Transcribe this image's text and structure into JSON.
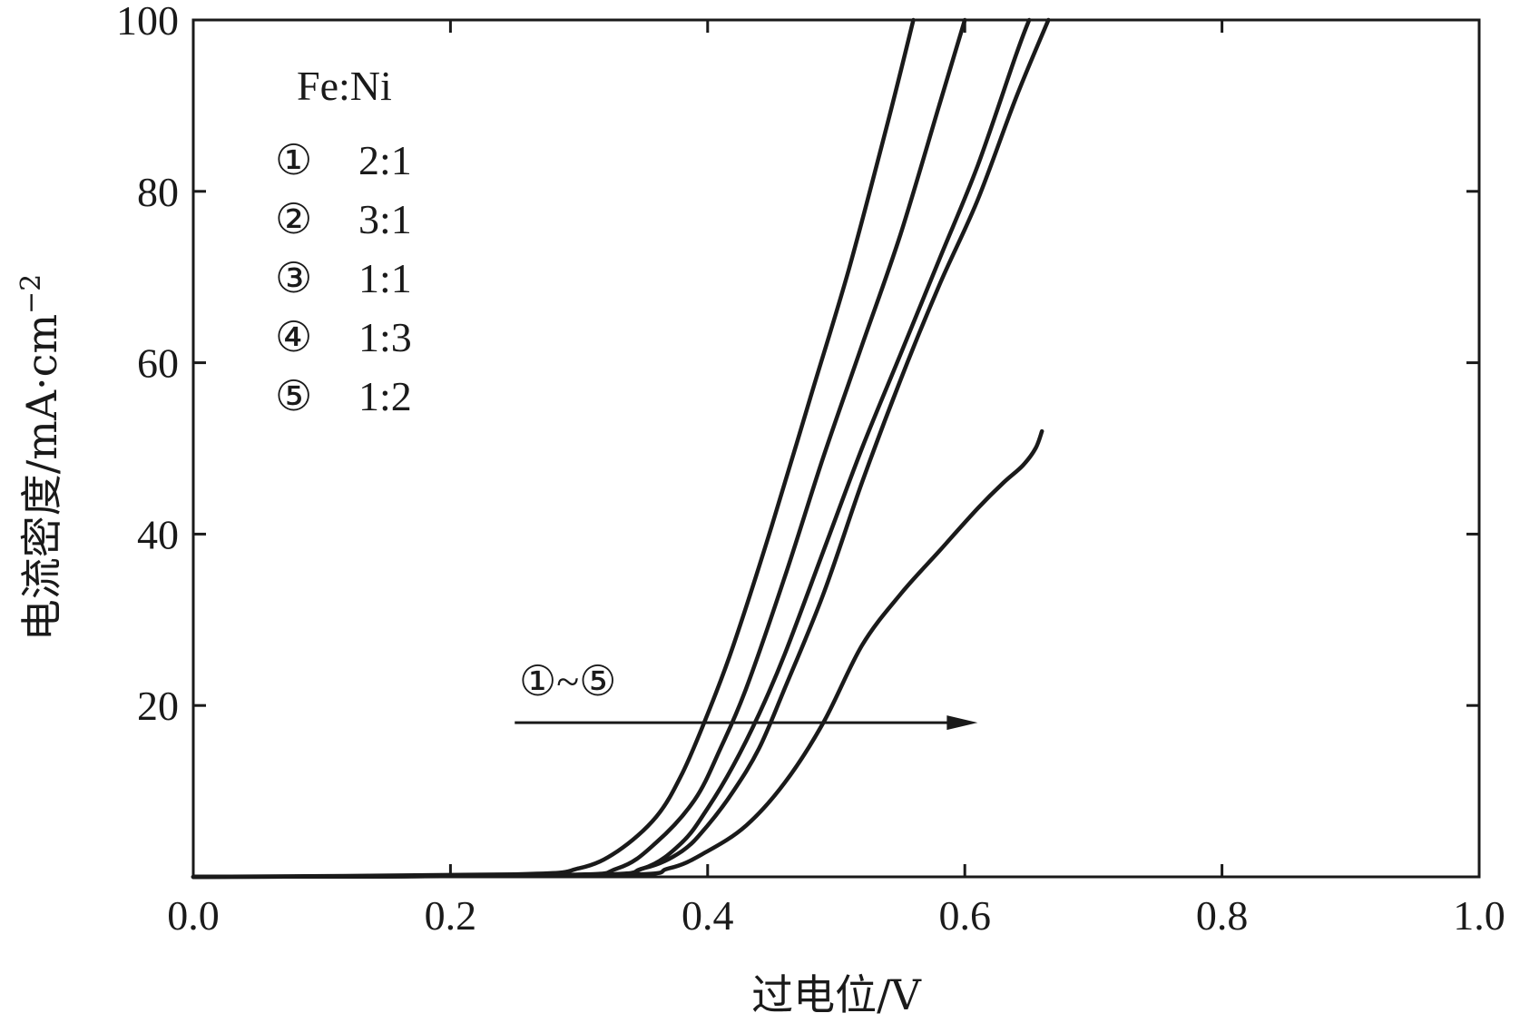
{
  "chart_data": {
    "type": "line",
    "xlabel": "过电位/V",
    "ylabel": "电流密度/mA·cm",
    "ylabel_exponent": "−2",
    "xlim": [
      0.0,
      1.0
    ],
    "ylim": [
      0,
      100
    ],
    "x_ticks": [
      0.0,
      0.2,
      0.4,
      0.6,
      0.8,
      1.0
    ],
    "x_tick_labels": [
      "0.0",
      "0.2",
      "0.4",
      "0.6",
      "0.8",
      "1.0"
    ],
    "y_ticks": [
      20,
      40,
      60,
      80,
      100
    ],
    "y_tick_labels": [
      "20",
      "40",
      "60",
      "80",
      "100"
    ],
    "grid": false,
    "legend_position": "top-left",
    "legend": {
      "title": "Fe:Ni",
      "entries": [
        {
          "marker": "①",
          "label": "2:1"
        },
        {
          "marker": "②",
          "label": "3:1"
        },
        {
          "marker": "③",
          "label": "1:1"
        },
        {
          "marker": "④",
          "label": "1:3"
        },
        {
          "marker": "⑤",
          "label": "1:2"
        }
      ]
    },
    "annotation": {
      "text": "①~⑤",
      "arrow_x": [
        0.25,
        0.61
      ],
      "arrow_y": 18
    },
    "series": [
      {
        "marker": "①",
        "x": [
          0.0,
          0.25,
          0.3,
          0.33,
          0.36,
          0.38,
          0.4,
          0.42,
          0.45,
          0.48,
          0.51,
          0.54,
          0.56
        ],
        "y": [
          0,
          0.3,
          1,
          3,
          7,
          12,
          19,
          27,
          41,
          56,
          71,
          88,
          100
        ]
      },
      {
        "marker": "②",
        "x": [
          0.0,
          0.28,
          0.33,
          0.36,
          0.39,
          0.41,
          0.43,
          0.46,
          0.49,
          0.52,
          0.55,
          0.58,
          0.6
        ],
        "y": [
          0,
          0.2,
          1,
          4,
          9,
          15,
          22,
          35,
          49,
          62,
          75,
          90,
          100
        ]
      },
      {
        "marker": "③",
        "x": [
          0.0,
          0.3,
          0.35,
          0.38,
          0.4,
          0.42,
          0.44,
          0.46,
          0.49,
          0.52,
          0.55,
          0.58,
          0.61,
          0.64,
          0.65
        ],
        "y": [
          0,
          0.2,
          1,
          4,
          8,
          13,
          19,
          26,
          38,
          50,
          61,
          72,
          83,
          96,
          100
        ]
      },
      {
        "marker": "④",
        "x": [
          0.0,
          0.3,
          0.35,
          0.38,
          0.4,
          0.42,
          0.44,
          0.46,
          0.49,
          0.52,
          0.55,
          0.58,
          0.61,
          0.64,
          0.665
        ],
        "y": [
          0,
          0.2,
          1,
          3,
          6,
          10,
          15,
          22,
          33,
          46,
          58,
          69,
          79,
          91,
          100
        ]
      },
      {
        "marker": "⑤",
        "x": [
          0.0,
          0.32,
          0.37,
          0.4,
          0.43,
          0.46,
          0.49,
          0.52,
          0.55,
          0.58,
          0.61,
          0.63,
          0.645,
          0.655,
          0.66
        ],
        "y": [
          0,
          0.2,
          1,
          3,
          6,
          11,
          18,
          27,
          33,
          38,
          43,
          46,
          48,
          50,
          52
        ]
      }
    ]
  }
}
